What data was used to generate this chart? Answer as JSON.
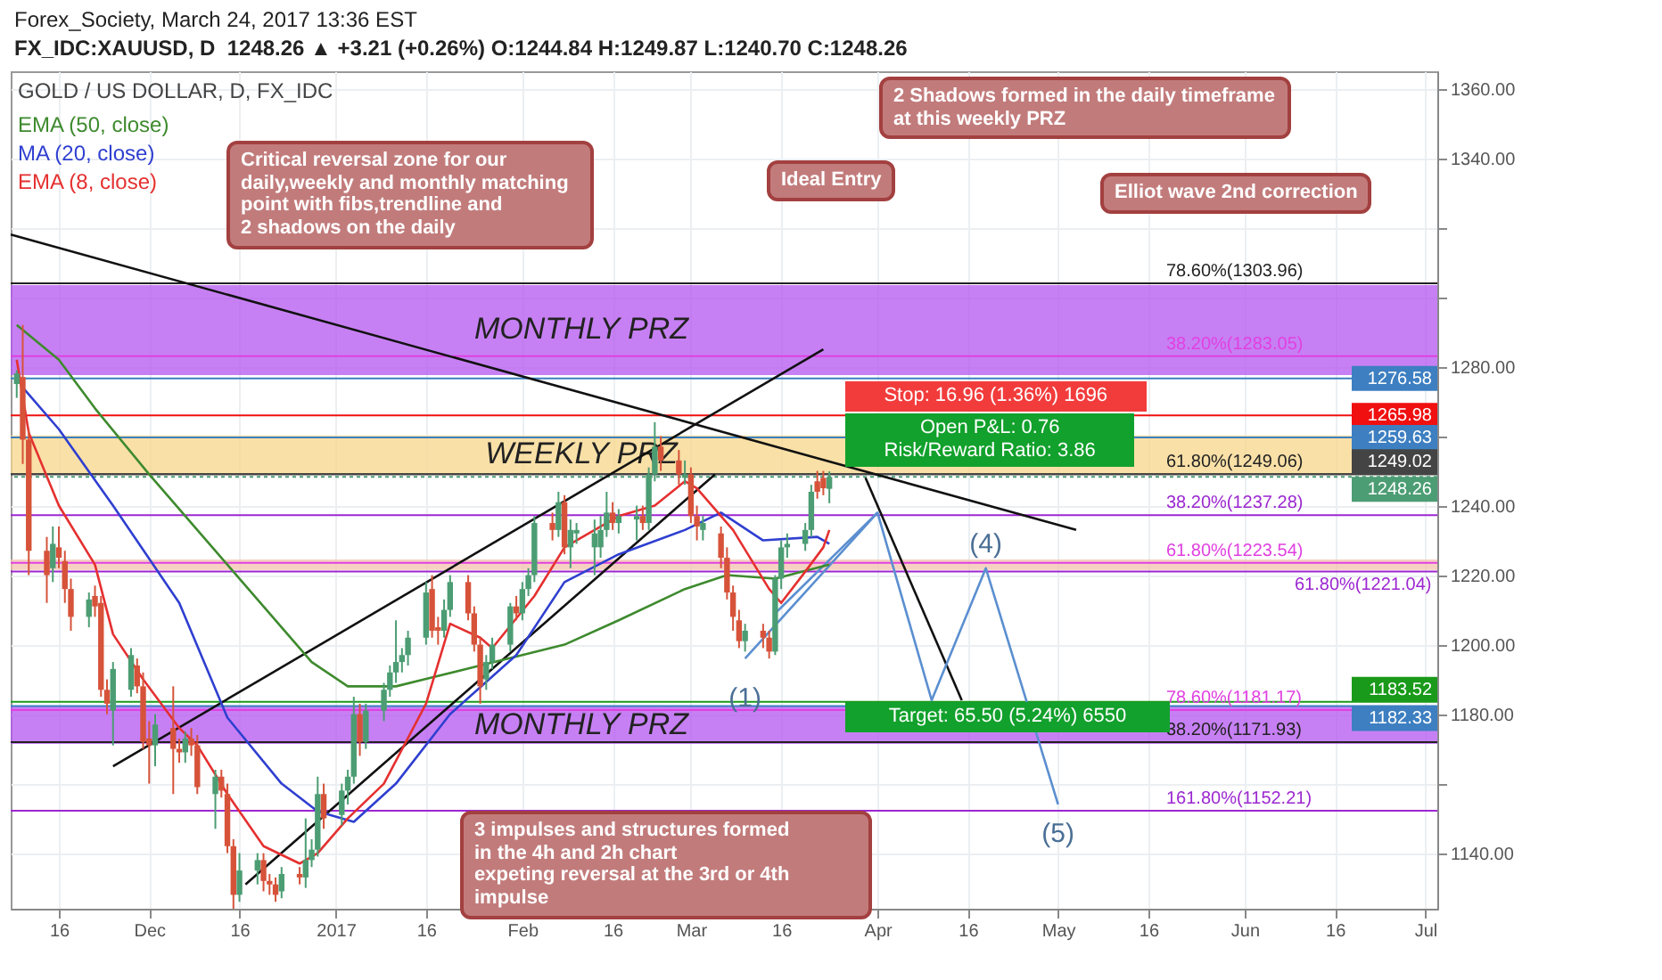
{
  "chart_data": {
    "type": "candlestick",
    "title": "GOLD / US DOLLAR, D, FX_IDC",
    "subtitle": "Forex_Society, March 24, 2017 13:36 EST",
    "annotations": [
      "FX_IDC:XAUUSD, D  1248.26 ▲ +3.21 (+0.26%) O:1244.84 H:1249.87 L:1240.70 C:1248.26",
      "Critical reversal zone for our\ndaily,weekly and monthly matching\npoint with fibs,trendline and\n2 shadows on the daily",
      "Ideal Entry",
      "2 Shadows formed in the daily timeframe\n at this weekly PRZ",
      "Elliot wave 2nd correction",
      "3 impulses and structures formed\nin the 4h and 2h chart\nexpeting reversal at the 3rd or 4th impulse",
      {
        "text": "Stop: 16.96 (1.36%) 1696",
        "x": "2017-03-27",
        "y": 1265.98
      },
      {
        "text": "Open P&L: 0.76\nRisk/Reward Ratio: 3.86",
        "x": "2017-03-27",
        "y": 1249.02
      },
      {
        "text": "Target: 65.50 (5.24%) 6550",
        "x": "2017-03-27",
        "y": 1183.52
      },
      {
        "text": "(1)",
        "x": "2017-03-10",
        "y": 1196
      },
      {
        "text": "(4)",
        "x": "2017-04-19",
        "y": 1222
      },
      {
        "text": "(5)",
        "x": "2017-05-01",
        "y": 1154
      }
    ],
    "x": [
      "2016-11-09",
      "2016-11-10",
      "2016-11-11",
      "2016-11-14",
      "2016-11-15",
      "2016-11-16",
      "2016-11-17",
      "2016-11-18",
      "2016-11-21",
      "2016-11-22",
      "2016-11-23",
      "2016-11-24",
      "2016-11-25",
      "2016-11-28",
      "2016-11-29",
      "2016-11-30",
      "2016-12-01",
      "2016-12-02",
      "2016-12-05",
      "2016-12-06",
      "2016-12-07",
      "2016-12-08",
      "2016-12-09",
      "2016-12-12",
      "2016-12-13",
      "2016-12-14",
      "2016-12-15",
      "2016-12-16",
      "2016-12-19",
      "2016-12-20",
      "2016-12-21",
      "2016-12-22",
      "2016-12-23",
      "2016-12-26",
      "2016-12-27",
      "2016-12-28",
      "2016-12-29",
      "2016-12-30",
      "2017-01-02",
      "2017-01-03",
      "2017-01-04",
      "2017-01-05",
      "2017-01-06",
      "2017-01-09",
      "2017-01-10",
      "2017-01-11",
      "2017-01-12",
      "2017-01-13",
      "2017-01-16",
      "2017-01-17",
      "2017-01-18",
      "2017-01-19",
      "2017-01-20",
      "2017-01-23",
      "2017-01-24",
      "2017-01-25",
      "2017-01-26",
      "2017-01-27",
      "2017-01-30",
      "2017-01-31",
      "2017-02-01",
      "2017-02-02",
      "2017-02-03",
      "2017-02-06",
      "2017-02-07",
      "2017-02-08",
      "2017-02-09",
      "2017-02-10",
      "2017-02-13",
      "2017-02-14",
      "2017-02-15",
      "2017-02-16",
      "2017-02-17",
      "2017-02-20",
      "2017-02-21",
      "2017-02-22",
      "2017-02-23",
      "2017-02-24",
      "2017-02-27",
      "2017-02-28",
      "2017-03-01",
      "2017-03-02",
      "2017-03-03",
      "2017-03-06",
      "2017-03-07",
      "2017-03-08",
      "2017-03-09",
      "2017-03-10",
      "2017-03-13",
      "2017-03-14",
      "2017-03-15",
      "2017-03-16",
      "2017-03-17",
      "2017-03-20",
      "2017-03-21",
      "2017-03-22",
      "2017-03-23",
      "2017-03-24"
    ],
    "ohlc": [
      [
        1275,
        1279,
        1271,
        1278
      ],
      [
        1277,
        1292,
        1252,
        1259
      ],
      [
        1259,
        1262,
        1220,
        1227
      ],
      [
        1227,
        1231,
        1212,
        1220
      ],
      [
        1222,
        1234,
        1218,
        1229
      ],
      [
        1228,
        1234,
        1222,
        1225
      ],
      [
        1224,
        1227,
        1212,
        1216
      ],
      [
        1216,
        1219,
        1204,
        1208
      ],
      [
        1208,
        1215,
        1205,
        1213
      ],
      [
        1214,
        1217,
        1208,
        1211
      ],
      [
        1212,
        1214,
        1185,
        1187
      ],
      [
        1187,
        1190,
        1180,
        1183
      ],
      [
        1181,
        1195,
        1171,
        1193
      ],
      [
        1187,
        1199,
        1185,
        1197
      ],
      [
        1194,
        1196,
        1186,
        1188
      ],
      [
        1188,
        1192,
        1170,
        1172
      ],
      [
        1173,
        1178,
        1160,
        1171
      ],
      [
        1171,
        1180,
        1165,
        1177
      ],
      [
        1176,
        1188,
        1157,
        1170
      ],
      [
        1170,
        1173,
        1166,
        1169
      ],
      [
        1169,
        1175,
        1166,
        1173
      ],
      [
        1173,
        1176,
        1168,
        1171
      ],
      [
        1171,
        1174,
        1157,
        1159
      ],
      [
        1157,
        1164,
        1147,
        1162
      ],
      [
        1162,
        1164,
        1156,
        1158
      ],
      [
        1157,
        1160,
        1140,
        1142
      ],
      [
        1142,
        1144,
        1124,
        1128
      ],
      [
        1128,
        1140,
        1126,
        1135
      ],
      [
        1135,
        1140,
        1131,
        1138
      ],
      [
        1138,
        1140,
        1129,
        1132
      ],
      [
        1132,
        1134,
        1128,
        1131
      ],
      [
        1131,
        1133,
        1126,
        1128
      ],
      [
        1129,
        1136,
        1127,
        1134
      ],
      [
        1134,
        1136,
        1131,
        1133
      ],
      [
        1133,
        1150,
        1130,
        1138
      ],
      [
        1138,
        1144,
        1136,
        1141
      ],
      [
        1141,
        1162,
        1139,
        1157
      ],
      [
        1157,
        1160,
        1147,
        1150
      ],
      [
        1151,
        1160,
        1148,
        1158
      ],
      [
        1158,
        1164,
        1154,
        1162
      ],
      [
        1162,
        1185,
        1160,
        1180
      ],
      [
        1180,
        1183,
        1168,
        1172
      ],
      [
        1172,
        1183,
        1170,
        1181
      ],
      [
        1181,
        1189,
        1178,
        1187
      ],
      [
        1187,
        1194,
        1185,
        1192
      ],
      [
        1192,
        1207,
        1189,
        1195
      ],
      [
        1195,
        1199,
        1192,
        1197
      ],
      [
        1197,
        1204,
        1194,
        1202
      ],
      [
        1202,
        1218,
        1200,
        1215
      ],
      [
        1216,
        1220,
        1202,
        1204
      ],
      [
        1205,
        1208,
        1200,
        1204
      ],
      [
        1204,
        1213,
        1202,
        1210
      ],
      [
        1210,
        1220,
        1208,
        1218
      ],
      [
        1218,
        1220,
        1207,
        1209
      ],
      [
        1209,
        1211,
        1198,
        1200
      ],
      [
        1200,
        1202,
        1183,
        1188
      ],
      [
        1190,
        1197,
        1187,
        1195
      ],
      [
        1195,
        1202,
        1193,
        1200
      ],
      [
        1200,
        1212,
        1198,
        1211
      ],
      [
        1211,
        1214,
        1207,
        1209
      ],
      [
        1209,
        1218,
        1207,
        1216
      ],
      [
        1216,
        1222,
        1214,
        1220
      ],
      [
        1220,
        1237,
        1218,
        1235
      ],
      [
        1235,
        1238,
        1230,
        1233
      ],
      [
        1233,
        1244,
        1231,
        1241
      ],
      [
        1241,
        1243,
        1226,
        1228
      ],
      [
        1228,
        1236,
        1222,
        1233
      ],
      [
        1232,
        1235,
        1229,
        1233
      ],
      [
        1228,
        1236,
        1220,
        1232
      ],
      [
        1228,
        1237,
        1225,
        1233
      ],
      [
        1233,
        1244,
        1231,
        1238
      ],
      [
        1238,
        1241,
        1233,
        1235
      ],
      [
        1235,
        1239,
        1232,
        1237
      ],
      [
        1236,
        1240,
        1230,
        1237
      ],
      [
        1237,
        1240,
        1233,
        1235
      ],
      [
        1235,
        1251,
        1233,
        1249
      ],
      [
        1249,
        1264,
        1247,
        1257
      ],
      [
        1257,
        1260,
        1250,
        1253
      ],
      [
        1253,
        1256,
        1246,
        1249
      ],
      [
        1248,
        1253,
        1246,
        1249
      ],
      [
        1249,
        1251,
        1235,
        1237
      ],
      [
        1237,
        1240,
        1230,
        1234
      ],
      [
        1233,
        1237,
        1230,
        1235
      ],
      [
        1232,
        1234,
        1222,
        1225
      ],
      [
        1225,
        1228,
        1213,
        1215
      ],
      [
        1215,
        1217,
        1204,
        1208
      ],
      [
        1207,
        1210,
        1199,
        1201
      ],
      [
        1201,
        1206,
        1198,
        1204
      ],
      [
        1204,
        1206,
        1199,
        1202
      ],
      [
        1202,
        1204,
        1196,
        1198
      ],
      [
        1198,
        1220,
        1197,
        1219
      ],
      [
        1219,
        1230,
        1216,
        1228
      ],
      [
        1228,
        1232,
        1225,
        1229
      ],
      [
        1229,
        1235,
        1227,
        1233
      ],
      [
        1233,
        1246,
        1231,
        1244
      ],
      [
        1247,
        1250,
        1242,
        1244
      ],
      [
        1248,
        1250,
        1243,
        1245
      ],
      [
        1244.84,
        1249.87,
        1240.7,
        1248.26
      ]
    ],
    "colors": [
      "#4c9d73",
      "#d6533a",
      "#d6533a",
      "#d6533a",
      "#4c9d73",
      "#d6533a",
      "#d6533a",
      "#d6533a",
      "#4c9d73",
      "#d6533a",
      "#d6533a",
      "#d6533a",
      "#4c9d73",
      "#4c9d73",
      "#d6533a",
      "#d6533a",
      "#d6533a",
      "#4c9d73",
      "#d6533a",
      "#d6533a",
      "#4c9d73",
      "#d6533a",
      "#d6533a",
      "#4c9d73",
      "#d6533a",
      "#d6533a",
      "#d6533a",
      "#4c9d73",
      "#4c9d73",
      "#d6533a",
      "#d6533a",
      "#d6533a",
      "#4c9d73",
      "#d6533a",
      "#4c9d73",
      "#4c9d73",
      "#4c9d73",
      "#d6533a",
      "#4c9d73",
      "#4c9d73",
      "#4c9d73",
      "#d6533a",
      "#4c9d73",
      "#4c9d73",
      "#4c9d73",
      "#4c9d73",
      "#4c9d73",
      "#4c9d73",
      "#4c9d73",
      "#d6533a",
      "#d6533a",
      "#4c9d73",
      "#4c9d73",
      "#d6533a",
      "#d6533a",
      "#d6533a",
      "#4c9d73",
      "#4c9d73",
      "#4c9d73",
      "#d6533a",
      "#4c9d73",
      "#4c9d73",
      "#4c9d73",
      "#d6533a",
      "#4c9d73",
      "#d6533a",
      "#4c9d73",
      "#4c9d73",
      "#4c9d73",
      "#4c9d73",
      "#4c9d73",
      "#d6533a",
      "#4c9d73",
      "#4c9d73",
      "#d6533a",
      "#4c9d73",
      "#4c9d73",
      "#d6533a",
      "#d6533a",
      "#4c9d73",
      "#d6533a",
      "#d6533a",
      "#4c9d73",
      "#d6533a",
      "#d6533a",
      "#d6533a",
      "#d6533a",
      "#4c9d73",
      "#d6533a",
      "#d6533a",
      "#4c9d73",
      "#4c9d73",
      "#4c9d73",
      "#4c9d73",
      "#4c9d73",
      "#d6533a",
      "#d6533a",
      "#4c9d73"
    ],
    "series": [
      {
        "name": "EMA (50, close)",
        "type": "line",
        "color": "#3e8a2e",
        "x": [
          "2016-11-09",
          "2016-11-16",
          "2016-11-22",
          "2016-12-01",
          "2016-12-14",
          "2016-12-28",
          "2017-01-03",
          "2017-01-11",
          "2017-01-25",
          "2017-02-08",
          "2017-02-17",
          "2017-02-28",
          "2017-03-07",
          "2017-03-15",
          "2017-03-24"
        ],
        "values": [
          1292,
          1282,
          1268,
          1249,
          1223,
          1195,
          1188,
          1188,
          1194,
          1200,
          1207,
          1216,
          1220,
          1219,
          1223
        ]
      },
      {
        "name": "MA (20, close)",
        "type": "line",
        "color": "#2f3fd0",
        "x": [
          "2016-11-10",
          "2016-11-16",
          "2016-11-25",
          "2016-12-06",
          "2016-12-14",
          "2016-12-23",
          "2016-12-29",
          "2017-01-04",
          "2017-01-11",
          "2017-01-20",
          "2017-01-31",
          "2017-02-08",
          "2017-02-17",
          "2017-02-28",
          "2017-03-06",
          "2017-03-13",
          "2017-03-22",
          "2017-03-24"
        ],
        "values": [
          1274,
          1262,
          1240,
          1212,
          1179,
          1160,
          1152,
          1149,
          1160,
          1180,
          1197,
          1218,
          1226,
          1233,
          1238,
          1230,
          1231,
          1229
        ]
      },
      {
        "name": "EMA (8, close)",
        "type": "line",
        "color": "#e53030",
        "x": [
          "2016-11-09",
          "2016-11-11",
          "2016-11-16",
          "2016-11-22",
          "2016-11-25",
          "2016-11-30",
          "2016-12-06",
          "2016-12-09",
          "2016-12-14",
          "2016-12-20",
          "2016-12-26",
          "2016-12-29",
          "2017-01-03",
          "2017-01-09",
          "2017-01-16",
          "2017-01-20",
          "2017-01-25",
          "2017-01-27",
          "2017-02-03",
          "2017-02-08",
          "2017-02-13",
          "2017-02-17",
          "2017-02-23",
          "2017-02-28",
          "2017-03-02",
          "2017-03-08",
          "2017-03-14",
          "2017-03-16",
          "2017-03-20",
          "2017-03-23",
          "2017-03-24"
        ],
        "values": [
          1282,
          1261,
          1240,
          1223,
          1203,
          1190,
          1176,
          1171,
          1157,
          1142,
          1137,
          1140,
          1150,
          1160,
          1183,
          1206,
          1202,
          1199,
          1214,
          1228,
          1233,
          1237,
          1240,
          1247,
          1245,
          1233,
          1216,
          1212,
          1221,
          1228,
          1233
        ]
      },
      {
        "type": "line",
        "color": "#111111",
        "x": [
          "2016-11-08",
          "2017-05-04"
        ],
        "values": [
          1318,
          1233
        ]
      },
      {
        "type": "line",
        "color": "#111111",
        "x": [
          "2016-11-25",
          "2017-03-23"
        ],
        "values": [
          1165,
          1285
        ]
      },
      {
        "type": "line",
        "color": "#111111",
        "x": [
          "2016-12-17",
          "2017-03-05"
        ],
        "values": [
          1131,
          1249
        ]
      },
      {
        "type": "line",
        "color": "#111111",
        "x": [
          "2017-03-30",
          "2017-04-15"
        ],
        "values": [
          1248,
          1184
        ]
      },
      {
        "type": "line",
        "color": "#5b8fd0",
        "x": [
          "2017-03-10",
          "2017-04-01",
          "2017-04-10",
          "2017-04-19",
          "2017-05-01"
        ],
        "values": [
          1196,
          1238,
          1184,
          1222,
          1154
        ]
      },
      {
        "type": "line",
        "color": "#5b8fd0",
        "x": [
          "2017-03-15",
          "2017-04-01"
        ],
        "values": [
          1209,
          1238
        ]
      }
    ],
    "bands": [
      {
        "axis": "y",
        "from": 1277.6,
        "to": 1303.5,
        "label": "MONTHLY PRZ",
        "color": "#b455f0"
      },
      {
        "axis": "y",
        "from": 1249.2,
        "to": 1260.2,
        "label": "WEEKLY PRZ",
        "color": "#f7d58a"
      },
      {
        "axis": "y",
        "from": 1221.5,
        "to": 1224.5,
        "color": "#f3c2ae"
      },
      {
        "axis": "y",
        "from": 1171.4,
        "to": 1182.3,
        "label": "MONTHLY PRZ",
        "color": "#b455f0"
      }
    ],
    "ref_lines": [
      {
        "axis": "y",
        "value": 1303.96,
        "label": "78.60%(1303.96)",
        "color": "#222222"
      },
      {
        "axis": "y",
        "value": 1283.05,
        "label": "38.20%(1283.05)",
        "color": "#e040e0"
      },
      {
        "axis": "y",
        "value": 1249.06,
        "label": "61.80%(1249.06)",
        "color": "#222222"
      },
      {
        "axis": "y",
        "value": 1237.28,
        "label": "38.20%(1237.28)",
        "color": "#9c27d0"
      },
      {
        "axis": "y",
        "value": 1223.54,
        "label": "61.80%(1223.54)",
        "color": "#e040e0"
      },
      {
        "axis": "y",
        "value": 1221.04,
        "label": "61.80%(1221.04)",
        "color": "#9c27d0"
      },
      {
        "axis": "y",
        "value": 1181.17,
        "label": "78.60%(1181.17)",
        "color": "#e040e0"
      },
      {
        "axis": "y",
        "value": 1171.93,
        "label": "38.20%(1171.93)",
        "color": "#222222"
      },
      {
        "axis": "y",
        "value": 1152.21,
        "label": "161.80%(1152.21)",
        "color": "#9c27d0"
      },
      {
        "axis": "y",
        "value": 1276.58,
        "label": "1276.58",
        "color": "#3d7fc1"
      },
      {
        "axis": "y",
        "value": 1265.98,
        "label": "1265.98",
        "color": "#f01010"
      },
      {
        "axis": "y",
        "value": 1259.63,
        "label": "1259.63",
        "color": "#3d7fc1"
      },
      {
        "axis": "y",
        "value": 1249.02,
        "label": "1249.02",
        "color": "#444444"
      },
      {
        "axis": "y",
        "value": 1248.26,
        "label": "1248.26",
        "color": "#4c9d73",
        "line_style": "dotted"
      },
      {
        "axis": "y",
        "value": 1183.52,
        "label": "1183.52",
        "color": "#1a9a1a"
      },
      {
        "axis": "y",
        "value": 1182.33,
        "label": "1182.33",
        "color": "#3d7fc1"
      }
    ],
    "xlim": [
      "2016-11-08",
      "2017-07-03"
    ],
    "xticks": [
      {
        "value": "2016-11-16",
        "label": "16"
      },
      {
        "value": "2016-12-01",
        "label": "Dec"
      },
      {
        "value": "2016-12-16",
        "label": "16"
      },
      {
        "value": "2017-01-01",
        "label": "2017"
      },
      {
        "value": "2017-01-16",
        "label": "16"
      },
      {
        "value": "2017-02-01",
        "label": "Feb"
      },
      {
        "value": "2017-02-16",
        "label": "16"
      },
      {
        "value": "2017-03-01",
        "label": "Mar"
      },
      {
        "value": "2017-03-16",
        "label": "16"
      },
      {
        "value": "2017-04-01",
        "label": "Apr"
      },
      {
        "value": "2017-04-16",
        "label": "16"
      },
      {
        "value": "2017-05-01",
        "label": "May"
      },
      {
        "value": "2017-05-16",
        "label": "16"
      },
      {
        "value": "2017-06-01",
        "label": "Jun"
      },
      {
        "value": "2017-06-16",
        "label": "16"
      },
      {
        "value": "2017-07-01",
        "label": "Jul"
      }
    ],
    "ylim": [
      1124,
      1365
    ],
    "yticks": [
      {
        "value": 1140,
        "label": "1140.00"
      },
      {
        "value": 1160,
        "label": null
      },
      {
        "value": 1180,
        "label": "1180.00"
      },
      {
        "value": 1200,
        "label": "1200.00"
      },
      {
        "value": 1220,
        "label": "1220.00"
      },
      {
        "value": 1240,
        "label": "1240.00"
      },
      {
        "value": 1260,
        "label": null
      },
      {
        "value": 1280,
        "label": "1280.00"
      },
      {
        "value": 1300,
        "label": null
      },
      {
        "value": 1320,
        "label": null
      },
      {
        "value": 1340,
        "label": "1340.00"
      },
      {
        "value": 1360,
        "label": "1360.00"
      }
    ],
    "grid": true,
    "legend": "top left"
  }
}
